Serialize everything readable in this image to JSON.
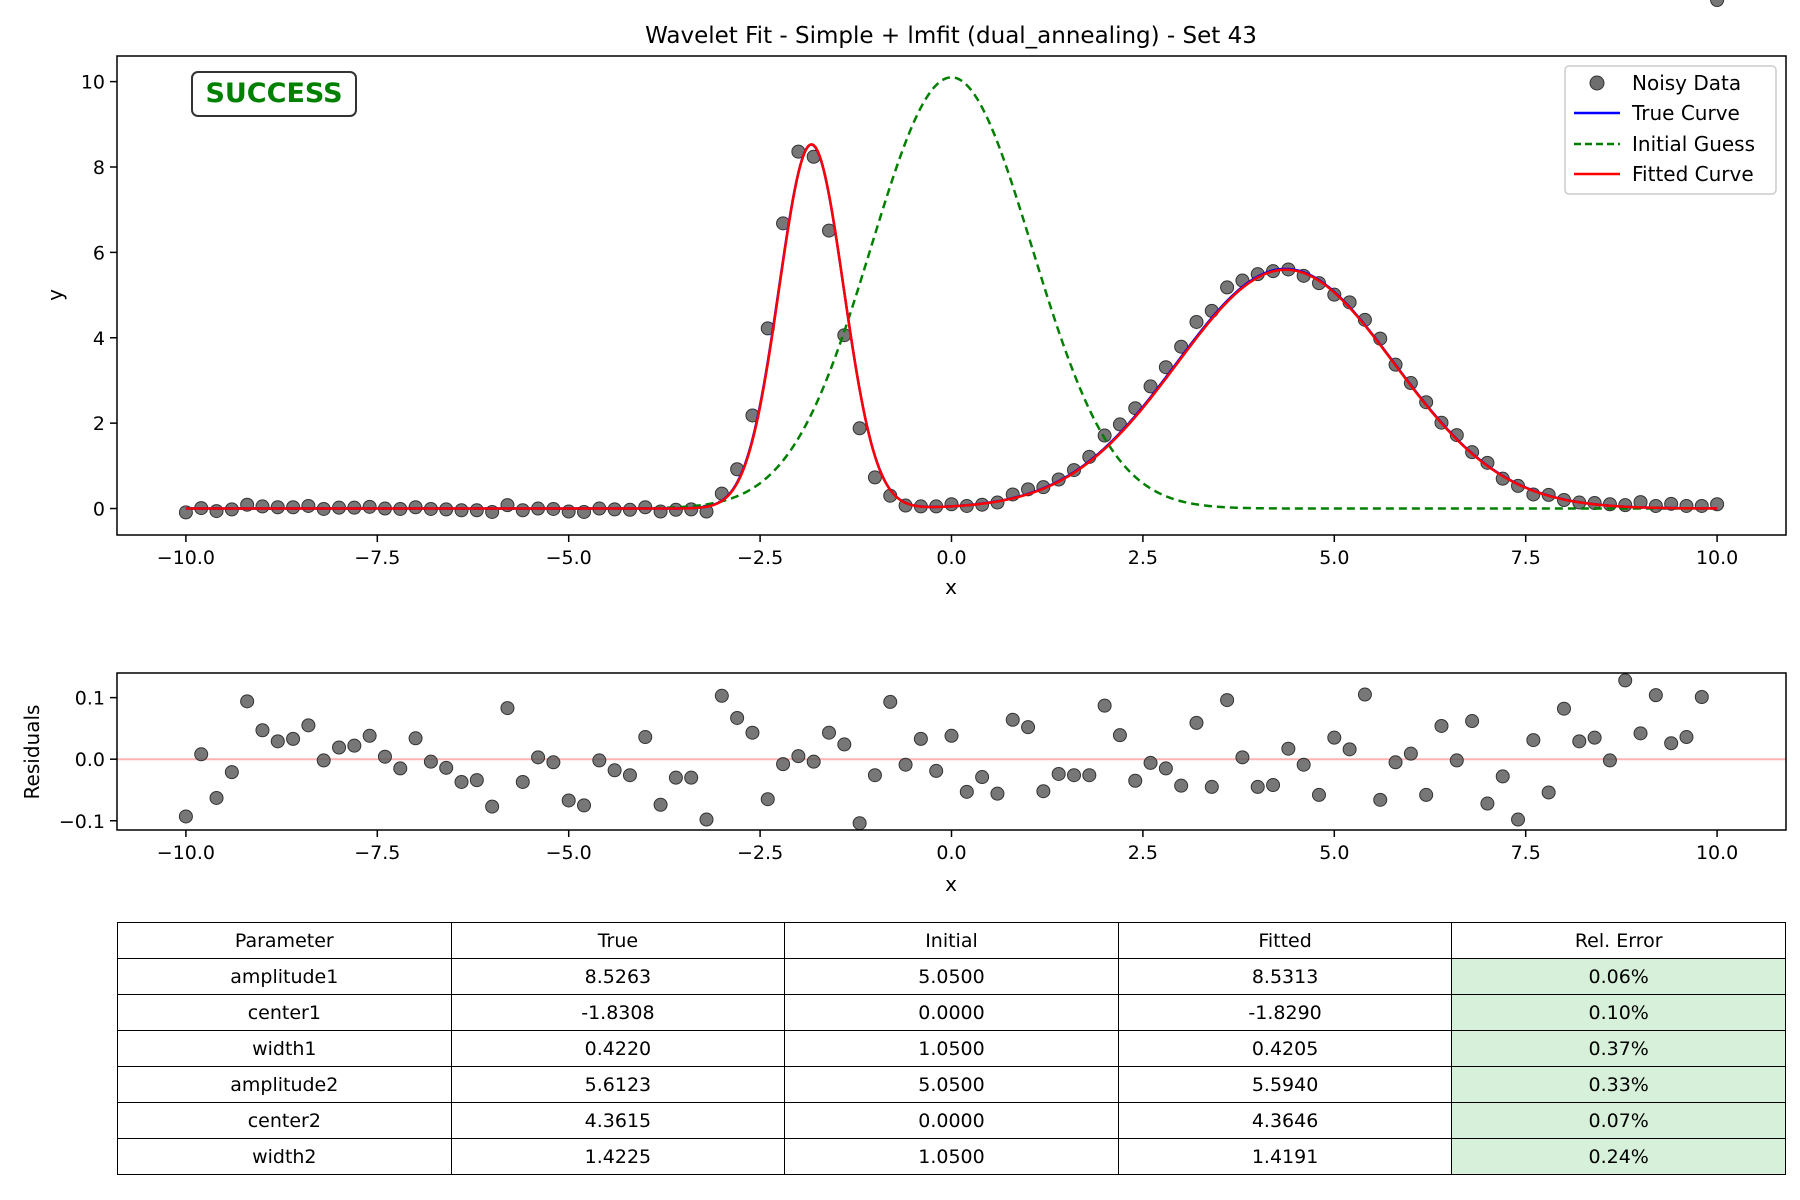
{
  "chart_data": [
    {
      "type": "line",
      "title": "Wavelet Fit - Simple + lmfit (dual_annealing) - Set 43",
      "xlabel": "x",
      "ylabel": "y",
      "xlim": [
        -10.9,
        10.9
      ],
      "ylim": [
        -0.62,
        10.6
      ],
      "xticks": [
        -10.0,
        -7.5,
        -5.0,
        -2.5,
        0.0,
        2.5,
        5.0,
        7.5,
        10.0
      ],
      "xtick_labels": [
        "−10.0",
        "−7.5",
        "−5.0",
        "−2.5",
        "0.0",
        "2.5",
        "5.0",
        "7.5",
        "10.0"
      ],
      "yticks": [
        0,
        2,
        4,
        6,
        8,
        10
      ],
      "ytick_labels": [
        "0",
        "2",
        "4",
        "6",
        "8",
        "10"
      ],
      "grid": false,
      "legend_position": "top-right",
      "status_label": "SUCCESS",
      "status_color": "#008000",
      "series": [
        {
          "name": "Noisy Data",
          "kind": "scatter",
          "color": "#555555"
        },
        {
          "name": "True Curve",
          "kind": "line",
          "color": "#0000ff",
          "model": {
            "amplitude1": 8.5263,
            "center1": -1.8308,
            "width1": 0.422,
            "amplitude2": 5.6123,
            "center2": 4.3615,
            "width2": 1.4225
          }
        },
        {
          "name": "Initial Guess",
          "kind": "dashed",
          "color": "#008000",
          "model": {
            "amplitude1": 5.05,
            "center1": 0.0,
            "width1": 1.05,
            "amplitude2": 5.05,
            "center2": 0.0,
            "width2": 1.05
          }
        },
        {
          "name": "Fitted Curve",
          "kind": "line",
          "color": "#ff0000",
          "model": {
            "amplitude1": 8.5313,
            "center1": -1.829,
            "width1": 0.4205,
            "amplitude2": 5.594,
            "center2": 4.3646,
            "width2": 1.4191
          }
        }
      ],
      "x": [
        -10.0,
        -9.8,
        -9.6,
        -9.4,
        -9.2,
        -9.0,
        -8.8,
        -8.6,
        -8.4,
        -8.2,
        -8.0,
        -7.8,
        -7.6,
        -7.4,
        -7.2,
        -7.0,
        -6.8,
        -6.6,
        -6.4,
        -6.2,
        -6.0,
        -5.8,
        -5.6,
        -5.4,
        -5.2,
        -5.0,
        -4.8,
        -4.6,
        -4.4,
        -4.2,
        -4.0,
        -3.8,
        -3.6,
        -3.4,
        -3.2,
        -3.0,
        -2.8,
        -2.6,
        -2.4,
        -2.2,
        -2.0,
        -1.8,
        -1.6,
        -1.4,
        -1.2,
        -1.0,
        -0.8,
        -0.6,
        -0.4,
        -0.2,
        0.0,
        0.2,
        0.4,
        0.6,
        0.8,
        1.0,
        1.2,
        1.4,
        1.6,
        1.8,
        2.0,
        2.2,
        2.4,
        2.6,
        2.8,
        3.0,
        3.2,
        3.4,
        3.6,
        3.8,
        4.0,
        4.2,
        4.4,
        4.6,
        4.8,
        5.0,
        5.2,
        5.4,
        5.6,
        5.8,
        6.0,
        6.2,
        6.4,
        6.6,
        6.8,
        7.0,
        7.2,
        7.4,
        7.6,
        7.8,
        8.0,
        8.2,
        8.4,
        8.6,
        8.8,
        9.0,
        9.2,
        9.4,
        9.6,
        9.8,
        10.0
      ],
      "y_noisy": [
        -0.09,
        0.01,
        -0.06,
        -0.02,
        0.09,
        0.05,
        0.03,
        0.03,
        0.06,
        -0.01,
        0.02,
        0.02,
        0.04,
        0.0,
        -0.01,
        0.03,
        -0.01,
        -0.02,
        -0.04,
        -0.04,
        -0.08,
        0.08,
        -0.04,
        0.0,
        -0.01,
        -0.07,
        -0.08,
        -0.0,
        -0.02,
        -0.03,
        0.03,
        -0.07,
        -0.03,
        -0.02,
        -0.07,
        0.35,
        0.92,
        2.18,
        4.22,
        6.68,
        8.36,
        8.24,
        6.51,
        4.06,
        1.88,
        0.73,
        0.3,
        0.07,
        0.05,
        0.05,
        0.1,
        0.06,
        0.09,
        0.14,
        0.33,
        0.45,
        0.5,
        0.68,
        0.9,
        1.21,
        1.71,
        1.97,
        2.35,
        2.86,
        3.31,
        3.79,
        4.37,
        4.63,
        5.18,
        5.34,
        5.49,
        5.56,
        5.6,
        5.45,
        5.28,
        5.01,
        4.83,
        4.42,
        3.98,
        3.37,
        2.94,
        2.49,
        2.01,
        1.72,
        1.32,
        1.07,
        0.7,
        0.53,
        0.33,
        0.32,
        0.2,
        0.14,
        0.13,
        0.1,
        0.08,
        0.15,
        0.06,
        0.11,
        0.06,
        0.06,
        0.1
      ]
    },
    {
      "type": "scatter",
      "xlabel": "x",
      "ylabel": "Residuals",
      "xlim": [
        -10.9,
        10.9
      ],
      "ylim": [
        -0.115,
        0.14
      ],
      "xticks": [
        -10.0,
        -7.5,
        -5.0,
        -2.5,
        0.0,
        2.5,
        5.0,
        7.5,
        10.0
      ],
      "xtick_labels": [
        "−10.0",
        "−7.5",
        "−5.0",
        "−2.5",
        "0.0",
        "2.5",
        "5.0",
        "7.5",
        "10.0"
      ],
      "yticks": [
        -0.1,
        0.0,
        0.1
      ],
      "ytick_labels": [
        "−0.1",
        "0.0",
        "0.1"
      ],
      "zero_line_color": "#ffb3b3",
      "point_color": "#555555",
      "residuals": [
        -0.093,
        0.008,
        -0.063,
        -0.021,
        0.094,
        0.047,
        0.029,
        0.033,
        0.055,
        -0.002,
        0.019,
        0.022,
        0.038,
        0.004,
        -0.015,
        0.034,
        -0.004,
        -0.014,
        -0.037,
        -0.034,
        -0.077,
        0.083,
        -0.037,
        0.003,
        -0.005,
        -0.067,
        -0.075,
        -0.002,
        -0.018,
        -0.026,
        0.036,
        -0.074,
        -0.03,
        -0.03,
        -0.098,
        0.103,
        0.067,
        0.043,
        -0.065,
        -0.008,
        0.005,
        -0.004,
        0.043,
        0.024,
        -0.104,
        -0.026,
        0.093,
        -0.009,
        0.033,
        -0.019,
        0.038,
        -0.053,
        -0.029,
        -0.056,
        0.064,
        0.052,
        -0.052,
        -0.024,
        -0.026,
        -0.026,
        0.087,
        0.039,
        -0.035,
        -0.006,
        -0.015,
        -0.043,
        0.059,
        -0.045,
        0.096,
        0.003,
        -0.045,
        -0.042,
        0.017,
        -0.009,
        -0.058,
        0.035,
        0.016,
        0.105,
        -0.066,
        -0.005,
        0.009,
        -0.058,
        0.054,
        -0.002,
        0.062,
        -0.072,
        -0.028,
        -0.098,
        0.031,
        -0.054,
        0.082,
        0.029,
        0.035,
        -0.002,
        0.128,
        0.042,
        0.104,
        0.026,
        0.036,
        0.101
      ]
    }
  ],
  "table": {
    "headers": [
      "Parameter",
      "True",
      "Initial",
      "Fitted",
      "Rel. Error"
    ],
    "rows": [
      [
        "amplitude1",
        "8.5263",
        "5.0500",
        "8.5313",
        "0.06%"
      ],
      [
        "center1",
        "-1.8308",
        "0.0000",
        "-1.8290",
        "0.10%"
      ],
      [
        "width1",
        "0.4220",
        "1.0500",
        "0.4205",
        "0.37%"
      ],
      [
        "amplitude2",
        "5.6123",
        "5.0500",
        "5.5940",
        "0.33%"
      ],
      [
        "center2",
        "4.3615",
        "0.0000",
        "4.3646",
        "0.07%"
      ],
      [
        "width2",
        "1.4225",
        "1.0500",
        "1.4191",
        "0.24%"
      ]
    ],
    "error_cell_color": "#d6f0d9"
  }
}
